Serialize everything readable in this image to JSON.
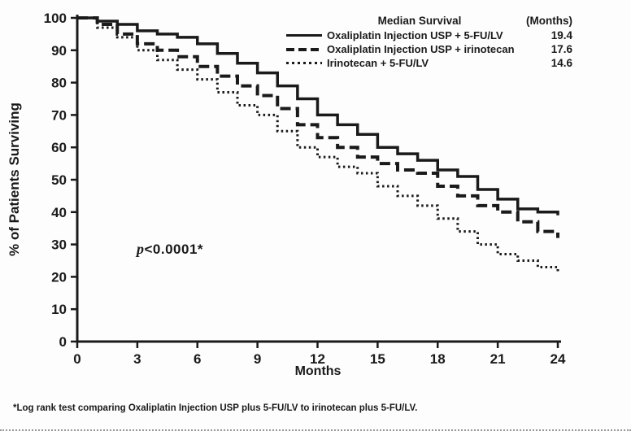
{
  "colors": {
    "line": "#1a1a1a",
    "background": "#fdfdfd"
  },
  "footnote": "*Log rank test comparing Oxaliplatin Injection USP plus 5-FU/LV to irinotecan plus 5-FU/LV.",
  "chart_data": {
    "type": "line",
    "subtype": "kaplan-meier-step",
    "title": "",
    "xlabel": "Months",
    "ylabel": "% of Patients Surviving",
    "xlim": [
      0,
      24
    ],
    "ylim": [
      0,
      100
    ],
    "xticks": [
      0,
      3,
      6,
      9,
      12,
      15,
      18,
      21,
      24
    ],
    "yticks": [
      0,
      10,
      20,
      30,
      40,
      50,
      60,
      70,
      80,
      90,
      100
    ],
    "grid": false,
    "legend": {
      "position": "top-right-inside",
      "title": "Median Survival",
      "unit_header": "(Months)"
    },
    "annotation": {
      "italic": "p",
      "text": "<0.0001*",
      "x_months": 3,
      "y_percent": 28
    },
    "x": [
      0,
      1,
      2,
      3,
      4,
      5,
      6,
      7,
      8,
      9,
      10,
      11,
      12,
      13,
      14,
      15,
      16,
      17,
      18,
      19,
      20,
      21,
      22,
      23,
      24
    ],
    "series": [
      {
        "name": "Oxaliplatin Injection USP + 5-FU/LV",
        "style": "solid",
        "median": "19.4",
        "values": [
          100,
          99,
          98,
          96,
          95,
          94,
          92,
          89,
          86,
          83,
          79,
          75,
          70,
          67,
          64,
          60,
          58,
          56,
          53,
          51,
          47,
          44,
          41,
          40,
          39
        ]
      },
      {
        "name": "Oxaliplatin Injection USP + irinotecan",
        "style": "dashed",
        "median": "17.6",
        "values": [
          100,
          98,
          95,
          92,
          90,
          88,
          85,
          82,
          79,
          76,
          72,
          67,
          63,
          60,
          57,
          55,
          53,
          52,
          48,
          45,
          42,
          40,
          37,
          34,
          32
        ]
      },
      {
        "name": "Irinotecan + 5-FU/LV",
        "style": "dotted",
        "median": "14.6",
        "values": [
          100,
          97,
          94,
          90,
          87,
          84,
          81,
          77,
          73,
          70,
          65,
          60,
          57,
          54,
          52,
          48,
          45,
          42,
          38,
          34,
          30,
          27,
          25,
          23,
          21
        ]
      }
    ]
  }
}
